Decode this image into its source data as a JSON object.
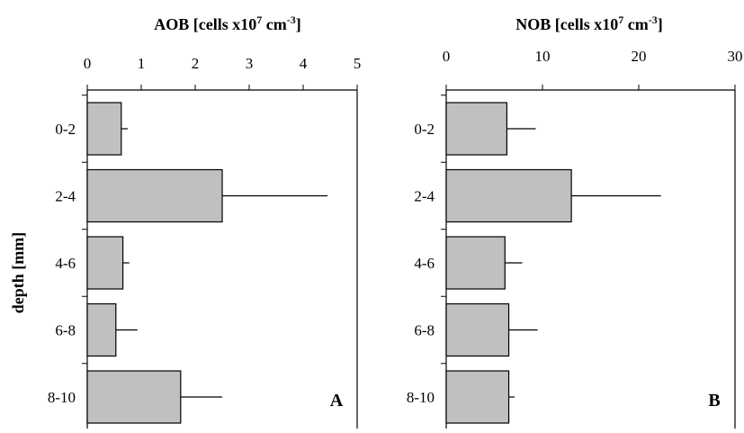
{
  "chart_data": {
    "type": "bar",
    "orientation": "horizontal",
    "ylabel": "depth [mm]",
    "categories": [
      "0-2",
      "2-4",
      "4-6",
      "6-8",
      "8-10"
    ],
    "colors": {
      "bar_fill": "#c0c0c0",
      "stroke": "#000000"
    },
    "panels": [
      {
        "panel_label": "A",
        "title_main": "AOB [cells x10",
        "title_sup1": "7",
        "title_mid": " cm",
        "title_sup2": "-3",
        "title_end": "]",
        "xlim": [
          0,
          5
        ],
        "xticks": [
          0,
          1,
          2,
          3,
          4,
          5
        ],
        "values": [
          0.63,
          2.5,
          0.66,
          0.53,
          1.73
        ],
        "errors": [
          0.12,
          1.95,
          0.12,
          0.4,
          0.77
        ]
      },
      {
        "panel_label": "B",
        "title_main": "NOB [cells x10",
        "title_sup1": "7",
        "title_mid": " cm",
        "title_sup2": "-3",
        "title_end": "]",
        "xlim": [
          0,
          30
        ],
        "xticks": [
          0,
          10,
          20,
          30
        ],
        "values": [
          6.3,
          13.0,
          6.1,
          6.5,
          6.5
        ],
        "errors": [
          3.0,
          9.3,
          1.8,
          3.0,
          0.6
        ]
      }
    ]
  }
}
